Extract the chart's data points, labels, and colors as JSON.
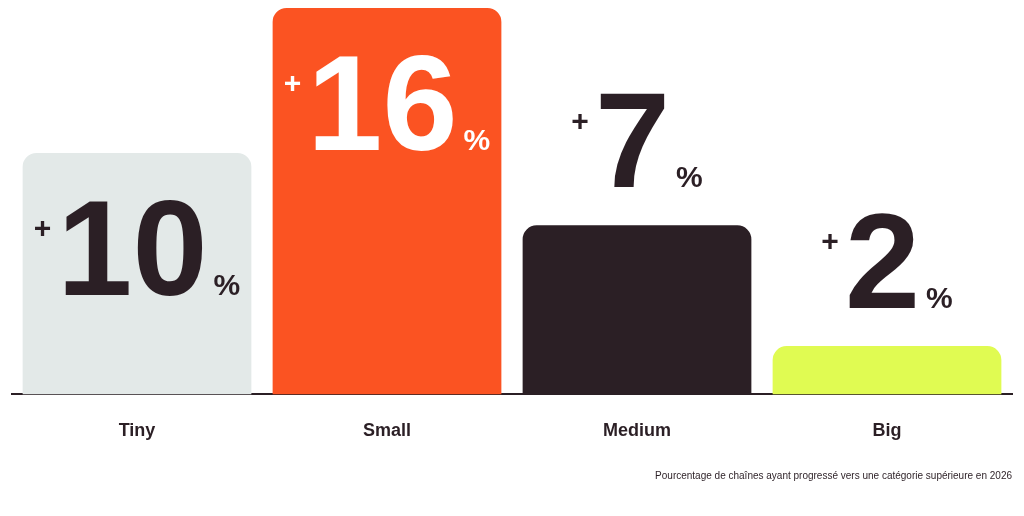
{
  "chart_data": {
    "type": "bar",
    "categories": [
      "Tiny",
      "Small",
      "Medium",
      "Big"
    ],
    "values": [
      10,
      16,
      7,
      2
    ],
    "colors": [
      "#e3e9e8",
      "#fb5322",
      "#2b1f25",
      "#e0fb52"
    ],
    "value_labels": [
      "+10%",
      "+16%",
      "+7%",
      "+2%"
    ],
    "grid": false,
    "legend": false,
    "annotations": [
      "Pourcentage de chaînes ayant progressé vers une catégorie supérieure en 2026"
    ]
  }
}
